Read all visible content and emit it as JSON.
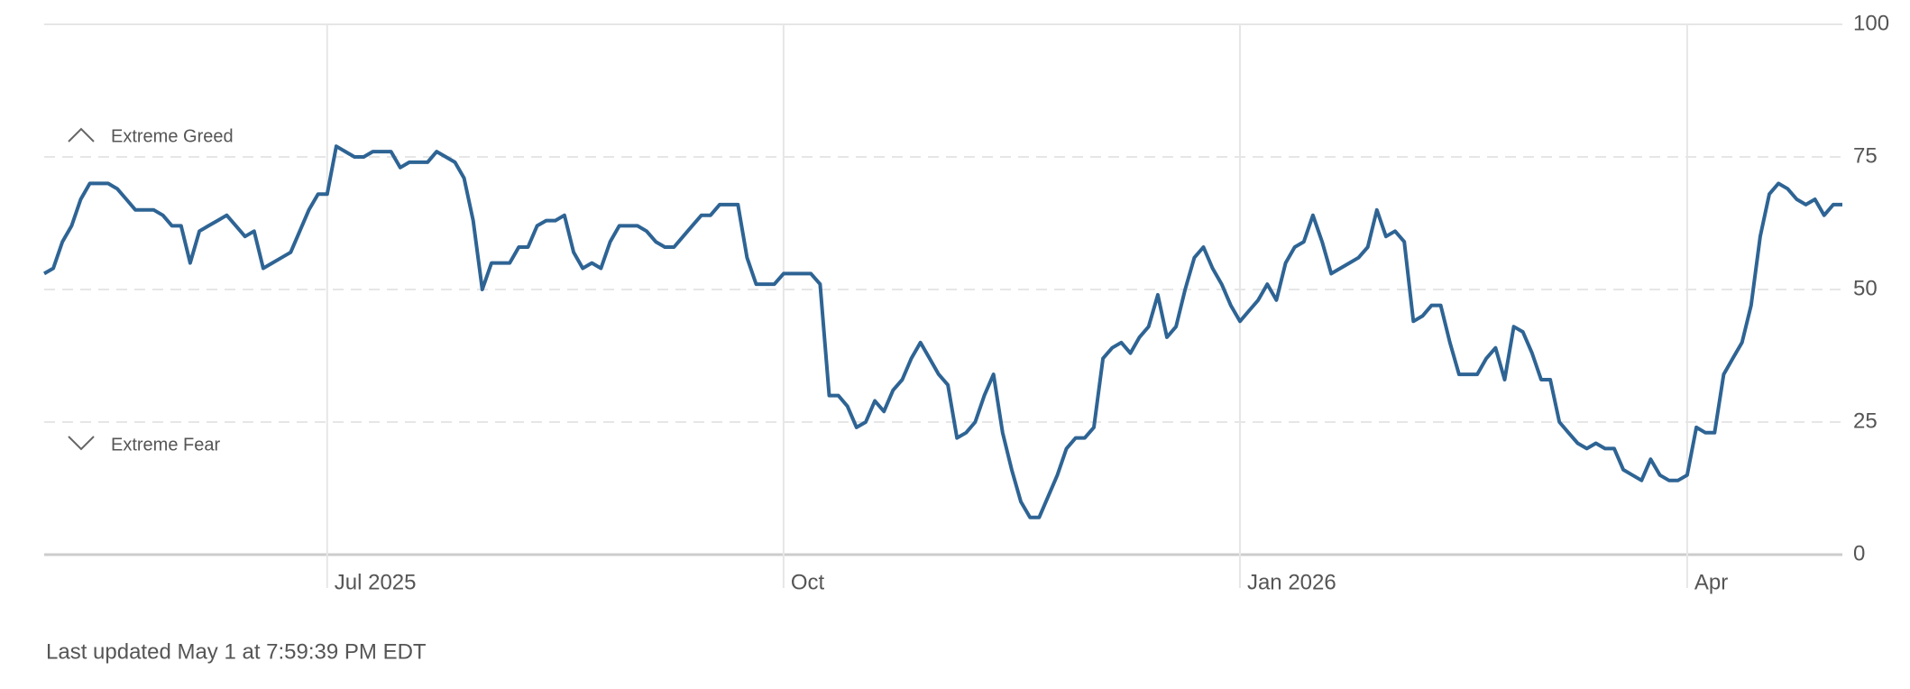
{
  "chart_data": {
    "type": "line",
    "categories": [
      null,
      null,
      null,
      null,
      null,
      null,
      null,
      null,
      null,
      null,
      null,
      null,
      null,
      null,
      null,
      null,
      null,
      null,
      null,
      null,
      null,
      null,
      null,
      null,
      null,
      null,
      null,
      null,
      null,
      null,
      null,
      "Jul 2025",
      null,
      null,
      null,
      null,
      null,
      null,
      null,
      null,
      null,
      null,
      null,
      null,
      null,
      null,
      null,
      null,
      null,
      null,
      null,
      null,
      null,
      null,
      null,
      null,
      null,
      null,
      null,
      null,
      null,
      null,
      null,
      null,
      null,
      null,
      null,
      null,
      null,
      null,
      null,
      null,
      null,
      null,
      null,
      null,
      null,
      null,
      null,
      null,
      null,
      "Oct",
      null,
      null,
      null,
      null,
      null,
      null,
      null,
      null,
      null,
      null,
      null,
      null,
      null,
      null,
      null,
      null,
      null,
      null,
      null,
      null,
      null,
      null,
      null,
      null,
      null,
      null,
      null,
      null,
      null,
      null,
      null,
      null,
      null,
      null,
      null,
      null,
      null,
      null,
      null,
      null,
      null,
      null,
      null,
      null,
      null,
      null,
      null,
      null,
      null,
      "Jan 2026",
      null,
      null,
      null,
      null,
      null,
      null,
      null,
      null,
      null,
      null,
      null,
      null,
      null,
      null,
      null,
      null,
      null,
      null,
      null,
      null,
      null,
      null,
      null,
      null,
      null,
      null,
      null,
      null,
      null,
      null,
      null,
      null,
      null,
      null,
      null,
      null,
      null,
      null,
      null,
      null,
      null,
      null,
      null,
      null,
      null,
      null,
      null,
      null,
      "Apr",
      null,
      null,
      null,
      null,
      null,
      null,
      null,
      null,
      null,
      null,
      null,
      null,
      null,
      null,
      null,
      null,
      null
    ],
    "series": [
      {
        "color": "#2e6494",
        "values": [
          53,
          54,
          59,
          62,
          67,
          70,
          70,
          70,
          69,
          67,
          65,
          65,
          65,
          64,
          62,
          62,
          55,
          61,
          62,
          63,
          64,
          62,
          60,
          61,
          54,
          55,
          56,
          57,
          61,
          65,
          68,
          68,
          77,
          76,
          75,
          75,
          76,
          76,
          76,
          73,
          74,
          74,
          74,
          76,
          75,
          74,
          71,
          63,
          50,
          55,
          55,
          55,
          58,
          58,
          62,
          63,
          63,
          64,
          57,
          54,
          55,
          54,
          59,
          62,
          62,
          62,
          61,
          59,
          58,
          58,
          60,
          62,
          64,
          64,
          66,
          66,
          66,
          56,
          51,
          51,
          51,
          53,
          53,
          53,
          53,
          51,
          30,
          30,
          28,
          24,
          25,
          29,
          27,
          31,
          33,
          37,
          40,
          37,
          34,
          32,
          22,
          23,
          25,
          30,
          34,
          23,
          16,
          10,
          7,
          7,
          11,
          15,
          20,
          22,
          22,
          24,
          37,
          39,
          40,
          38,
          41,
          43,
          49,
          41,
          43,
          50,
          56,
          58,
          54,
          51,
          47,
          44,
          46,
          48,
          51,
          48,
          55,
          58,
          59,
          64,
          59,
          53,
          54,
          55,
          56,
          58,
          65,
          60,
          61,
          59,
          44,
          45,
          47,
          47,
          40,
          34,
          34,
          34,
          37,
          39,
          33,
          43,
          42,
          38,
          33,
          33,
          25,
          23,
          21,
          20,
          21,
          20,
          20,
          16,
          15,
          14,
          18,
          15,
          14,
          14,
          15,
          24,
          23,
          23,
          34,
          37,
          40,
          47,
          60,
          68,
          70,
          69,
          67,
          66,
          67,
          64,
          66,
          66
        ]
      }
    ],
    "ylim": [
      0,
      100
    ],
    "yticks": [
      0,
      25,
      50,
      75,
      100
    ],
    "grid": true,
    "annotations": [
      "Extreme Greed",
      "Extreme Fear"
    ],
    "footer": "Last updated May 1 at 7:59:39 PM EDT"
  }
}
